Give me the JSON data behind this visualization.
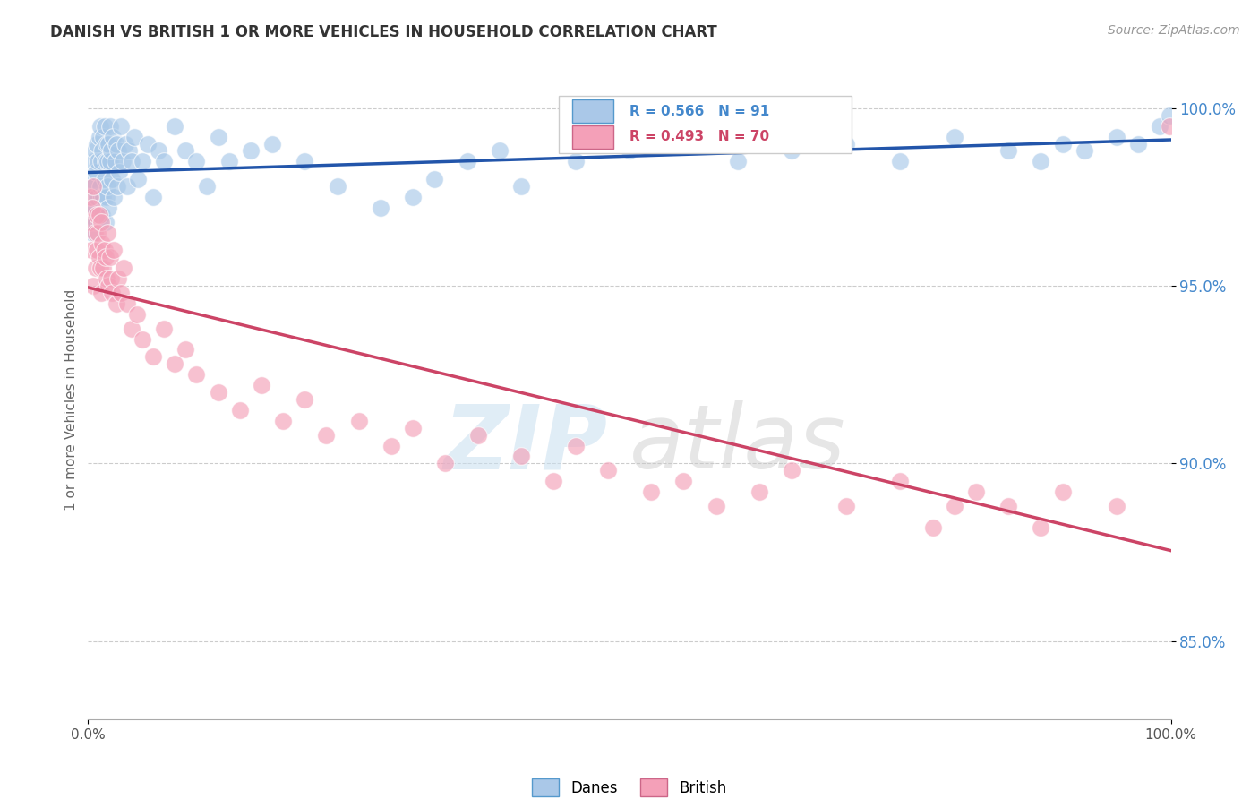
{
  "title": "DANISH VS BRITISH 1 OR MORE VEHICLES IN HOUSEHOLD CORRELATION CHART",
  "source": "Source: ZipAtlas.com",
  "ylabel": "1 or more Vehicles in Household",
  "x_min": 0.0,
  "x_max": 1.0,
  "y_min": 0.828,
  "y_max": 1.008,
  "y_ticks": [
    0.85,
    0.9,
    0.95,
    1.0
  ],
  "y_tick_labels": [
    "85.0%",
    "90.0%",
    "95.0%",
    "100.0%"
  ],
  "x_tick_labels": [
    "0.0%",
    "100.0%"
  ],
  "legend_labels": [
    "Danes",
    "British"
  ],
  "blue_color": "#a8c8e8",
  "pink_color": "#f4a0b8",
  "blue_line_color": "#2255aa",
  "pink_line_color": "#cc4466",
  "R_danes": 0.566,
  "N_danes": 91,
  "R_british": 0.493,
  "N_british": 70,
  "danes_x": [
    0.001,
    0.002,
    0.003,
    0.003,
    0.004,
    0.005,
    0.005,
    0.006,
    0.006,
    0.007,
    0.007,
    0.008,
    0.008,
    0.009,
    0.009,
    0.01,
    0.01,
    0.011,
    0.011,
    0.012,
    0.012,
    0.013,
    0.013,
    0.014,
    0.014,
    0.015,
    0.015,
    0.016,
    0.016,
    0.017,
    0.017,
    0.018,
    0.018,
    0.019,
    0.019,
    0.02,
    0.02,
    0.021,
    0.022,
    0.023,
    0.024,
    0.025,
    0.026,
    0.027,
    0.028,
    0.029,
    0.03,
    0.032,
    0.034,
    0.036,
    0.038,
    0.04,
    0.043,
    0.046,
    0.05,
    0.055,
    0.06,
    0.065,
    0.07,
    0.08,
    0.09,
    0.1,
    0.11,
    0.12,
    0.13,
    0.15,
    0.17,
    0.2,
    0.23,
    0.27,
    0.3,
    0.32,
    0.35,
    0.38,
    0.4,
    0.45,
    0.5,
    0.55,
    0.6,
    0.65,
    0.7,
    0.75,
    0.8,
    0.85,
    0.88,
    0.9,
    0.92,
    0.95,
    0.97,
    0.99,
    0.999
  ],
  "danes_y": [
    0.97,
    0.975,
    0.968,
    0.98,
    0.965,
    0.978,
    0.985,
    0.972,
    0.988,
    0.968,
    0.982,
    0.975,
    0.99,
    0.97,
    0.985,
    0.992,
    0.968,
    0.978,
    0.995,
    0.975,
    0.985,
    0.97,
    0.988,
    0.975,
    0.992,
    0.98,
    0.995,
    0.968,
    0.985,
    0.975,
    0.99,
    0.978,
    0.985,
    0.972,
    0.99,
    0.985,
    0.995,
    0.988,
    0.98,
    0.992,
    0.975,
    0.985,
    0.99,
    0.978,
    0.988,
    0.982,
    0.995,
    0.985,
    0.99,
    0.978,
    0.988,
    0.985,
    0.992,
    0.98,
    0.985,
    0.99,
    0.975,
    0.988,
    0.985,
    0.995,
    0.988,
    0.985,
    0.978,
    0.992,
    0.985,
    0.988,
    0.99,
    0.985,
    0.978,
    0.972,
    0.975,
    0.98,
    0.985,
    0.988,
    0.978,
    0.985,
    0.988,
    0.992,
    0.985,
    0.988,
    0.99,
    0.985,
    0.992,
    0.988,
    0.985,
    0.99,
    0.988,
    0.992,
    0.99,
    0.995,
    0.998
  ],
  "british_x": [
    0.001,
    0.002,
    0.003,
    0.004,
    0.005,
    0.005,
    0.006,
    0.007,
    0.008,
    0.008,
    0.009,
    0.01,
    0.01,
    0.011,
    0.012,
    0.012,
    0.013,
    0.014,
    0.015,
    0.016,
    0.017,
    0.018,
    0.019,
    0.02,
    0.021,
    0.022,
    0.024,
    0.026,
    0.028,
    0.03,
    0.033,
    0.036,
    0.04,
    0.045,
    0.05,
    0.06,
    0.07,
    0.08,
    0.09,
    0.1,
    0.12,
    0.14,
    0.16,
    0.18,
    0.2,
    0.22,
    0.25,
    0.28,
    0.3,
    0.33,
    0.36,
    0.4,
    0.43,
    0.45,
    0.48,
    0.52,
    0.55,
    0.58,
    0.62,
    0.65,
    0.7,
    0.75,
    0.78,
    0.8,
    0.82,
    0.85,
    0.88,
    0.9,
    0.95,
    0.999
  ],
  "british_y": [
    0.968,
    0.975,
    0.96,
    0.972,
    0.978,
    0.95,
    0.965,
    0.955,
    0.97,
    0.96,
    0.965,
    0.958,
    0.97,
    0.955,
    0.968,
    0.948,
    0.962,
    0.955,
    0.96,
    0.958,
    0.952,
    0.965,
    0.95,
    0.958,
    0.952,
    0.948,
    0.96,
    0.945,
    0.952,
    0.948,
    0.955,
    0.945,
    0.938,
    0.942,
    0.935,
    0.93,
    0.938,
    0.928,
    0.932,
    0.925,
    0.92,
    0.915,
    0.922,
    0.912,
    0.918,
    0.908,
    0.912,
    0.905,
    0.91,
    0.9,
    0.908,
    0.902,
    0.895,
    0.905,
    0.898,
    0.892,
    0.895,
    0.888,
    0.892,
    0.898,
    0.888,
    0.895,
    0.882,
    0.888,
    0.892,
    0.888,
    0.882,
    0.892,
    0.888,
    0.995
  ],
  "watermark_zip": "ZIP",
  "watermark_atlas": "atlas",
  "background_color": "#ffffff",
  "grid_color": "#cccccc",
  "title_color": "#333333",
  "axis_label_color": "#666666",
  "y_tick_color": "#4488cc",
  "source_color": "#999999"
}
